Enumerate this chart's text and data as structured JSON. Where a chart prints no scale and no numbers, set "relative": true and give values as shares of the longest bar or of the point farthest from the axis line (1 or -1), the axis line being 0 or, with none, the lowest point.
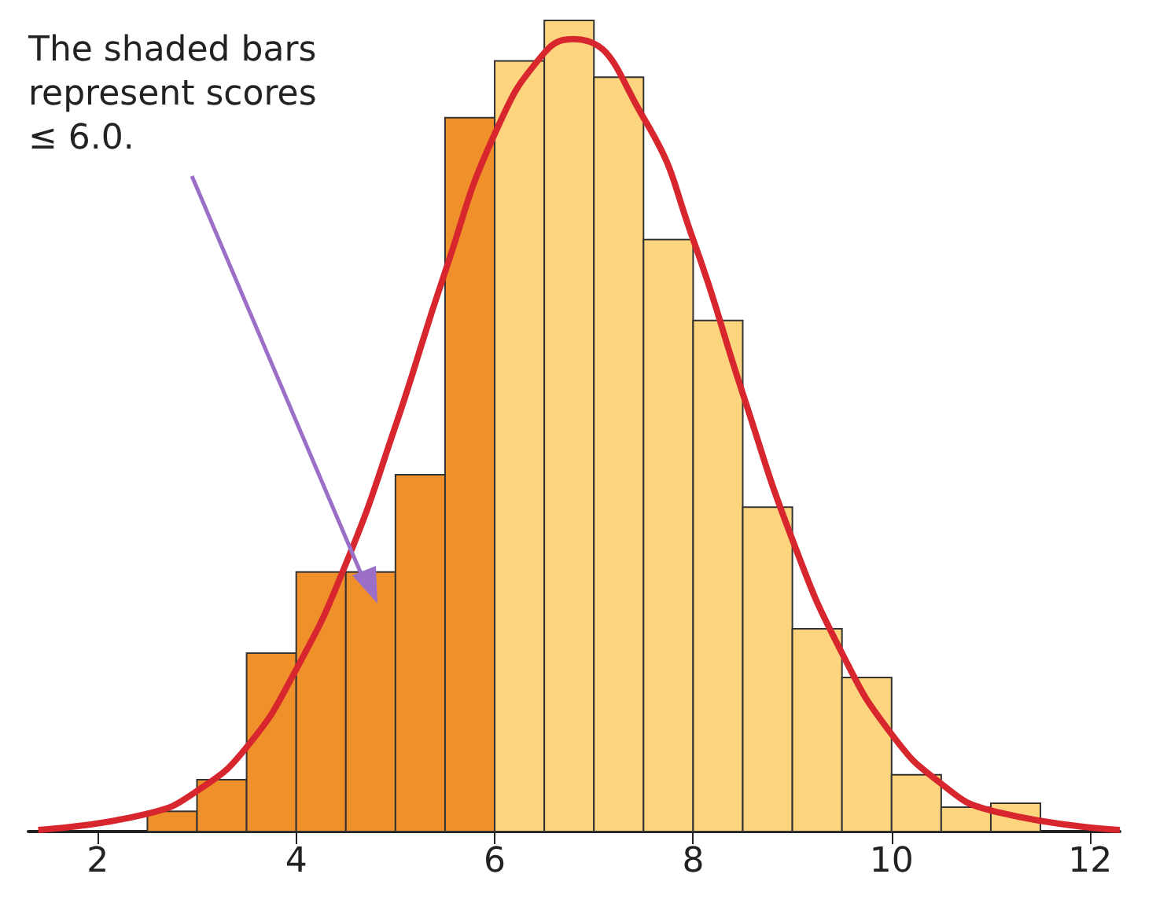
{
  "chart_data": {
    "type": "histogram",
    "relative": true,
    "bins": [
      2.5,
      3,
      3.5,
      4,
      4.5,
      5,
      5.5,
      6,
      6.5,
      7,
      7.5,
      8,
      8.5,
      9,
      9.5,
      10,
      10.5,
      11,
      11.5
    ],
    "values": [
      0.025,
      0.064,
      0.22,
      0.32,
      0.32,
      0.44,
      0.88,
      0.95,
      1,
      0.93,
      0.73,
      0.63,
      0.4,
      0.25,
      0.19,
      0.07,
      0.03,
      0.035
    ],
    "colors": [
      "#f0902a",
      "#f0902a",
      "#f0902a",
      "#f0902a",
      "#f0902a",
      "#f0902a",
      "#f0902a",
      "#fdd57e",
      "#fdd57e",
      "#fdd57e",
      "#fdd57e",
      "#fdd57e",
      "#fdd57e",
      "#fdd57e",
      "#fdd57e",
      "#fdd57e",
      "#fdd57e",
      "#fdd57e"
    ],
    "series": [
      {
        "type": "line",
        "color": "#d7262e",
        "x": [
          1.4,
          2.5,
          3,
          3.5,
          4,
          4.5,
          5,
          5.5,
          6,
          6.5,
          6.8,
          7.5,
          8,
          8.5,
          9,
          9.5,
          10,
          10.5,
          11,
          12.3
        ],
        "values": [
          0.002,
          0.022,
          0.05,
          0.104,
          0.2,
          0.33,
          0.5,
          0.69,
          0.86,
          0.96,
          0.977,
          0.88,
          0.73,
          0.54,
          0.36,
          0.22,
          0.12,
          0.059,
          0.026,
          0.002
        ]
      }
    ],
    "xlim": [
      1.3,
      12.3
    ],
    "xticks": [
      2,
      4,
      6,
      8,
      10,
      12
    ],
    "grid": false,
    "marker": "none",
    "annotations": [
      "The shaded bars\nrepresent scores\n≤ 6.0."
    ]
  }
}
